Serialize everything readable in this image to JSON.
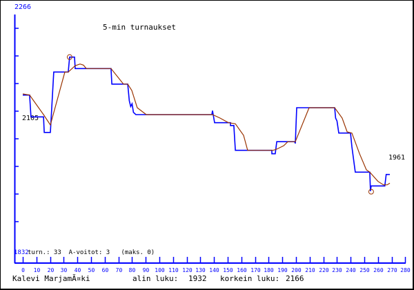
{
  "chart_data": {
    "type": "line",
    "title": "5-min turnaukset",
    "xlim": [
      0,
      280
    ],
    "ylim": [
      1832,
      2266
    ],
    "x_ticks": [
      0,
      10,
      20,
      30,
      40,
      50,
      60,
      70,
      80,
      90,
      100,
      110,
      120,
      130,
      140,
      150,
      160,
      170,
      180,
      190,
      200,
      210,
      220,
      230,
      240,
      250,
      260,
      270,
      280
    ],
    "y_tick_values": [
      1880,
      1928,
      1976,
      2024,
      2072,
      2120,
      2168,
      2216
    ],
    "y_top_label": "2266",
    "y_bottom_label": "1832",
    "start_label": "2105",
    "end_label": "1961",
    "stats_line": "turn.: 33  A-voitot: 3   (maks. 0)",
    "colors": {
      "axis": "#0000ff",
      "rating": "#0000ff",
      "trend": "#993300",
      "text": "#000000"
    },
    "series": [
      {
        "role": "rating",
        "points": [
          [
            0,
            2100
          ],
          [
            5,
            2100
          ],
          [
            6,
            2062
          ],
          [
            15.2,
            2062
          ],
          [
            15.7,
            2035
          ],
          [
            20.2,
            2035
          ],
          [
            22.7,
            2140
          ],
          [
            33.3,
            2140
          ],
          [
            34.3,
            2166
          ],
          [
            37.9,
            2166
          ],
          [
            38.4,
            2146
          ],
          [
            64.6,
            2146
          ],
          [
            65.2,
            2119
          ],
          [
            76.8,
            2119
          ],
          [
            78,
            2090
          ],
          [
            79,
            2080
          ],
          [
            80,
            2085
          ],
          [
            81,
            2070
          ],
          [
            82.8,
            2066
          ],
          [
            138.4,
            2066
          ],
          [
            138.9,
            2073
          ],
          [
            140.4,
            2052
          ],
          [
            152,
            2052
          ],
          [
            152,
            2047
          ],
          [
            154.5,
            2047
          ],
          [
            155.6,
            2004
          ],
          [
            182.3,
            2004
          ],
          [
            182.3,
            1998
          ],
          [
            184.8,
            1998
          ],
          [
            185.9,
            2019
          ],
          [
            199,
            2019
          ],
          [
            199.5,
            2016
          ],
          [
            200.5,
            2078
          ],
          [
            228.3,
            2078
          ],
          [
            229,
            2060
          ],
          [
            230,
            2055
          ],
          [
            231.3,
            2034
          ],
          [
            239.9,
            2034
          ],
          [
            240.9,
            2010
          ],
          [
            243.4,
            1966
          ],
          [
            254,
            1966
          ],
          [
            254.5,
            1933
          ],
          [
            255,
            1942
          ],
          [
            265,
            1942
          ],
          [
            266,
            1962
          ],
          [
            268.7,
            1962
          ]
        ]
      },
      {
        "role": "trend",
        "points": [
          [
            0,
            2102
          ],
          [
            5,
            2100
          ],
          [
            15.2,
            2066
          ],
          [
            20.2,
            2048
          ],
          [
            30.8,
            2140
          ],
          [
            33.3,
            2140
          ],
          [
            38.4,
            2151
          ],
          [
            41.9,
            2154
          ],
          [
            44.4,
            2152
          ],
          [
            46.5,
            2146
          ],
          [
            64.6,
            2146
          ],
          [
            73.7,
            2119
          ],
          [
            76.8,
            2119
          ],
          [
            79.8,
            2108
          ],
          [
            83.8,
            2078
          ],
          [
            90.4,
            2066
          ],
          [
            138.9,
            2066
          ],
          [
            144.4,
            2060
          ],
          [
            150.5,
            2052
          ],
          [
            155.6,
            2050
          ],
          [
            161.6,
            2030
          ],
          [
            164.6,
            2004
          ],
          [
            183.3,
            2004
          ],
          [
            185.9,
            2006
          ],
          [
            191,
            2012
          ],
          [
            194,
            2019
          ],
          [
            199.5,
            2019
          ],
          [
            209.6,
            2078
          ],
          [
            228.3,
            2078
          ],
          [
            233.8,
            2060
          ],
          [
            237.4,
            2036
          ],
          [
            240.9,
            2034
          ],
          [
            246.5,
            1998
          ],
          [
            251.5,
            1970
          ],
          [
            254,
            1966
          ],
          [
            260,
            1950
          ],
          [
            264,
            1944
          ],
          [
            266.7,
            1944
          ],
          [
            268.7,
            1947
          ]
        ]
      }
    ],
    "markers": [
      {
        "label": "korkein",
        "x": 34.3,
        "y": 2166
      },
      {
        "label": "alin",
        "x": 255,
        "y": 1932
      }
    ]
  },
  "footer": {
    "player": "Kalevi MarjamÃ¤ki",
    "lowest_label": "alin luku:",
    "lowest_value": "1932",
    "highest_label": "korkein luku:",
    "highest_value": "2166"
  }
}
